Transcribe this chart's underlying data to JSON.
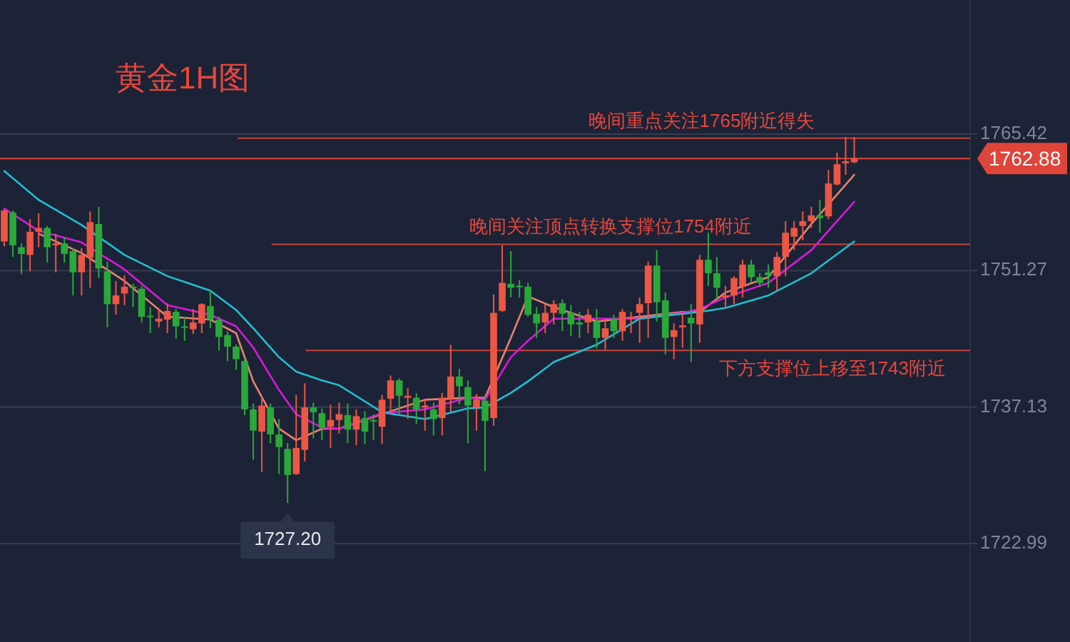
{
  "chart_data": {
    "type": "candlestick",
    "title": "黄金1H图",
    "categories": [
      null,
      null,
      null,
      null,
      null,
      null,
      null,
      null,
      null,
      null,
      null,
      null,
      null,
      null,
      null,
      null,
      null,
      null,
      null,
      null,
      null,
      null,
      null,
      null,
      null,
      null,
      null,
      null,
      null,
      null,
      null,
      null,
      null,
      null,
      null,
      null,
      null,
      null,
      null,
      null,
      null,
      null,
      null,
      null,
      null,
      null,
      null,
      null,
      null,
      null,
      null,
      null,
      null,
      null,
      null,
      null,
      null,
      null,
      null,
      null,
      null,
      null,
      null,
      null,
      null,
      null,
      null,
      null,
      null,
      null,
      null,
      null,
      null,
      null,
      null,
      null,
      null,
      null,
      null,
      null,
      null,
      null,
      null,
      null,
      null,
      null,
      null,
      null,
      null,
      null,
      null,
      null,
      null,
      null,
      null,
      null,
      null,
      null,
      null,
      null,
      null,
      null,
      null,
      null,
      null,
      null,
      null,
      null,
      null,
      null,
      null,
      null,
      null
    ],
    "ohlc": [
      [
        1754.3,
        1757.6,
        1753.8,
        1757.5
      ],
      [
        1757.3,
        1757.5,
        1752.7,
        1753.9
      ],
      [
        1753.7,
        1754.1,
        1750.9,
        1753.0
      ],
      [
        1752.9,
        1756.6,
        1751.2,
        1755.3
      ],
      [
        1755.3,
        1757.2,
        1753.7,
        1755.7
      ],
      [
        1755.7,
        1755.9,
        1752.1,
        1753.7
      ],
      [
        1753.9,
        1755.1,
        1751.1,
        1754.1
      ],
      [
        1754.1,
        1754.7,
        1752.1,
        1753.0
      ],
      [
        1753.3,
        1753.6,
        1748.7,
        1751.1
      ],
      [
        1751.1,
        1753.6,
        1748.7,
        1752.9
      ],
      [
        1752.6,
        1757.4,
        1749.5,
        1756.3
      ],
      [
        1756.1,
        1757.9,
        1750.5,
        1751.5
      ],
      [
        1751.2,
        1752.2,
        1745.4,
        1747.8
      ],
      [
        1747.8,
        1750.2,
        1746.7,
        1748.7
      ],
      [
        1748.9,
        1750.8,
        1747.7,
        1749.6
      ],
      [
        1749.6,
        1749.9,
        1747.5,
        1749.5
      ],
      [
        1749.4,
        1749.7,
        1745.9,
        1746.5
      ],
      [
        1746.6,
        1747.5,
        1744.8,
        1746.5
      ],
      [
        1746.0,
        1747.3,
        1745.4,
        1746.3
      ],
      [
        1746.2,
        1747.9,
        1744.8,
        1747.1
      ],
      [
        1747.0,
        1747.3,
        1744.2,
        1745.5
      ],
      [
        1745.5,
        1746.5,
        1744.0,
        1745.4
      ],
      [
        1745.2,
        1747.3,
        1744.7,
        1745.9
      ],
      [
        1745.8,
        1747.9,
        1744.8,
        1747.8
      ],
      [
        1747.6,
        1749.2,
        1745.3,
        1746.2
      ],
      [
        1746.2,
        1746.5,
        1743.0,
        1744.4
      ],
      [
        1744.6,
        1745.0,
        1741.9,
        1743.4
      ],
      [
        1743.4,
        1743.6,
        1741.0,
        1742.1
      ],
      [
        1741.9,
        1742.2,
        1736.3,
        1736.9
      ],
      [
        1736.9,
        1737.5,
        1731.7,
        1734.7
      ],
      [
        1734.6,
        1738.2,
        1730.4,
        1737.3
      ],
      [
        1737.1,
        1737.5,
        1733.4,
        1734.3
      ],
      [
        1734.3,
        1735.9,
        1730.2,
        1733.0
      ],
      [
        1732.8,
        1733.4,
        1727.2,
        1730.1
      ],
      [
        1730.2,
        1738.4,
        1730.1,
        1732.9
      ],
      [
        1732.7,
        1739.6,
        1731.5,
        1737.1
      ],
      [
        1737.1,
        1737.6,
        1733.9,
        1736.6
      ],
      [
        1736.5,
        1737.0,
        1733.7,
        1735.0
      ],
      [
        1735.1,
        1737.4,
        1732.9,
        1735.8
      ],
      [
        1735.8,
        1737.6,
        1734.4,
        1736.4
      ],
      [
        1736.3,
        1737.5,
        1733.4,
        1734.8
      ],
      [
        1734.8,
        1736.9,
        1733.2,
        1736.2
      ],
      [
        1736.0,
        1736.7,
        1733.3,
        1734.6
      ],
      [
        1735.8,
        1736.4,
        1733.7,
        1735.7
      ],
      [
        1735.1,
        1738.4,
        1733.3,
        1737.9
      ],
      [
        1738.0,
        1740.4,
        1736.8,
        1739.9
      ],
      [
        1739.9,
        1740.1,
        1736.4,
        1738.3
      ],
      [
        1738.1,
        1739.1,
        1735.9,
        1738.3
      ],
      [
        1738.1,
        1738.6,
        1735.4,
        1736.9
      ],
      [
        1737.1,
        1737.9,
        1734.7,
        1737.3
      ],
      [
        1736.9,
        1737.6,
        1734.2,
        1735.9
      ],
      [
        1736.0,
        1738.6,
        1734.2,
        1738.1
      ],
      [
        1738.0,
        1743.6,
        1736.6,
        1740.3
      ],
      [
        1740.3,
        1741.1,
        1737.4,
        1739.3
      ],
      [
        1739.2,
        1739.9,
        1733.4,
        1737.3
      ],
      [
        1737.1,
        1738.5,
        1734.7,
        1737.9
      ],
      [
        1737.8,
        1738.4,
        1730.5,
        1735.7
      ],
      [
        1736.0,
        1748.8,
        1735.2,
        1746.9
      ],
      [
        1747.1,
        1753.9,
        1747.0,
        1750.0
      ],
      [
        1749.9,
        1753.3,
        1748.5,
        1749.5
      ],
      [
        1749.7,
        1750.3,
        1748.5,
        1749.6
      ],
      [
        1749.6,
        1750.0,
        1746.5,
        1746.7
      ],
      [
        1746.8,
        1747.5,
        1744.3,
        1745.8
      ],
      [
        1745.9,
        1747.8,
        1744.8,
        1746.9
      ],
      [
        1746.9,
        1748.2,
        1745.7,
        1747.8
      ],
      [
        1747.9,
        1748.3,
        1745.0,
        1746.8
      ],
      [
        1746.9,
        1747.7,
        1744.5,
        1745.7
      ],
      [
        1745.9,
        1747.0,
        1744.3,
        1745.7
      ],
      [
        1745.9,
        1747.3,
        1744.8,
        1746.7
      ],
      [
        1746.0,
        1747.3,
        1743.2,
        1744.3
      ],
      [
        1744.3,
        1746.3,
        1743.1,
        1745.3
      ],
      [
        1746.3,
        1746.7,
        1744.3,
        1745.0
      ],
      [
        1745.0,
        1747.3,
        1744.0,
        1747.0
      ],
      [
        1746.3,
        1747.0,
        1744.8,
        1746.5
      ],
      [
        1746.9,
        1748.5,
        1743.8,
        1747.8
      ],
      [
        1747.9,
        1752.2,
        1744.3,
        1751.8
      ],
      [
        1751.8,
        1753.4,
        1746.0,
        1748.0
      ],
      [
        1748.2,
        1749.0,
        1742.6,
        1744.3
      ],
      [
        1744.4,
        1745.8,
        1742.1,
        1745.1
      ],
      [
        1745.4,
        1746.8,
        1743.3,
        1745.6
      ],
      [
        1746.4,
        1747.8,
        1741.8,
        1745.8
      ],
      [
        1745.7,
        1752.9,
        1743.8,
        1752.4
      ],
      [
        1752.4,
        1755.2,
        1749.7,
        1751.0
      ],
      [
        1751.0,
        1752.7,
        1748.3,
        1749.5
      ],
      [
        1748.5,
        1749.7,
        1747.3,
        1748.7
      ],
      [
        1748.7,
        1750.7,
        1747.8,
        1750.5
      ],
      [
        1749.6,
        1752.4,
        1748.5,
        1751.9
      ],
      [
        1751.9,
        1752.4,
        1750.0,
        1750.6
      ],
      [
        1750.6,
        1751.0,
        1749.6,
        1750.0
      ],
      [
        1751.1,
        1751.9,
        1749.5,
        1750.8
      ],
      [
        1750.7,
        1753.2,
        1749.2,
        1752.7
      ],
      [
        1752.7,
        1756.4,
        1750.7,
        1755.2
      ],
      [
        1754.8,
        1756.4,
        1753.4,
        1755.7
      ],
      [
        1755.9,
        1757.4,
        1754.4,
        1756.4
      ],
      [
        1756.4,
        1757.9,
        1755.7,
        1757.0
      ],
      [
        1757.0,
        1758.6,
        1755.2,
        1756.7
      ],
      [
        1756.9,
        1761.7,
        1756.6,
        1760.3
      ],
      [
        1760.2,
        1763.5,
        1760.1,
        1762.3
      ],
      [
        1762.4,
        1765.1,
        1761.2,
        1762.6
      ],
      [
        1762.5,
        1765.1,
        1762.4,
        1762.88
      ],
      null,
      null,
      null,
      null,
      null,
      null,
      null,
      null,
      null,
      null,
      null,
      null,
      null
    ],
    "series": [
      {
        "type": "line",
        "color": "#e8836f",
        "values": [
          null,
          null,
          null,
          null,
          1755.1,
          null,
          null,
          null,
          null,
          1753.1,
          null,
          null,
          null,
          null,
          1750.2,
          null,
          null,
          null,
          null,
          1746.5,
          null,
          null,
          null,
          null,
          1746.2,
          null,
          null,
          1744.8,
          null,
          1739.8,
          null,
          null,
          1734.9,
          null,
          1733.7,
          null,
          null,
          1734.9,
          null,
          1734.9,
          null,
          null,
          null,
          null,
          1736.4,
          null,
          null,
          null,
          null,
          1737.9,
          null,
          null,
          null,
          null,
          1738.1,
          null,
          1738.1,
          null,
          null,
          1744.3,
          null,
          1748.6,
          null,
          null,
          1747.5,
          null,
          null,
          null,
          null,
          1746.0,
          null,
          null,
          null,
          null,
          1746.5,
          null,
          null,
          null,
          null,
          1747.0,
          null,
          1747.0,
          null,
          null,
          1749.0,
          null,
          null,
          null,
          null,
          1750.6,
          null,
          null,
          null,
          null,
          1756.1,
          null,
          null,
          null,
          null,
          1761.2,
          null,
          null,
          null,
          null,
          null,
          null,
          null,
          null,
          null,
          null,
          null,
          null,
          null
        ]
      },
      {
        "type": "line",
        "color": "#d91ad9",
        "values": [
          1757.7,
          null,
          null,
          null,
          1755.4,
          null,
          null,
          null,
          null,
          1754.2,
          null,
          null,
          null,
          null,
          1751.4,
          null,
          null,
          null,
          null,
          1747.7,
          null,
          null,
          null,
          null,
          1746.7,
          null,
          null,
          1745.5,
          null,
          1743.3,
          null,
          null,
          1738.9,
          null,
          1736.4,
          null,
          null,
          1735.0,
          null,
          1734.9,
          null,
          null,
          null,
          null,
          1736.5,
          null,
          null,
          null,
          null,
          1736.9,
          null,
          null,
          null,
          null,
          1738.1,
          null,
          1737.9,
          null,
          null,
          1742.3,
          null,
          1744.0,
          null,
          null,
          1746.3,
          null,
          null,
          null,
          null,
          1746.3,
          null,
          null,
          null,
          null,
          1746.3,
          null,
          null,
          null,
          null,
          1746.9,
          null,
          1747.3,
          null,
          null,
          1748.5,
          null,
          null,
          null,
          null,
          1750.0,
          null,
          null,
          null,
          null,
          1753.4,
          null,
          null,
          null,
          null,
          1758.4,
          null,
          null,
          null,
          null,
          null,
          null,
          null,
          null,
          null,
          null,
          null,
          null,
          null
        ]
      },
      {
        "type": "line",
        "color": "#1fbfcf",
        "values": [
          1761.6,
          null,
          null,
          null,
          1758.6,
          null,
          null,
          null,
          null,
          1756.0,
          null,
          null,
          null,
          null,
          1752.9,
          null,
          null,
          null,
          null,
          1750.7,
          null,
          null,
          null,
          null,
          1749.2,
          null,
          null,
          1747.2,
          null,
          1745.3,
          null,
          null,
          1742.3,
          null,
          1740.8,
          null,
          null,
          1739.9,
          null,
          1739.4,
          null,
          null,
          null,
          null,
          1736.6,
          null,
          null,
          null,
          null,
          1735.9,
          null,
          null,
          null,
          null,
          1737.0,
          null,
          1737.1,
          null,
          null,
          1738.6,
          null,
          1739.8,
          null,
          null,
          1741.8,
          null,
          null,
          null,
          null,
          1743.6,
          null,
          null,
          null,
          null,
          1746.3,
          null,
          null,
          null,
          null,
          1746.8,
          null,
          1747.0,
          null,
          null,
          1747.4,
          null,
          null,
          null,
          null,
          1748.7,
          null,
          null,
          null,
          null,
          1751.0,
          null,
          null,
          null,
          null,
          1754.3,
          null,
          null,
          null,
          null,
          null,
          null,
          null,
          null,
          null,
          null,
          null,
          null,
          null
        ]
      }
    ],
    "ylim": [
      1712.8,
      1779.31
    ],
    "yticks": [
      1722.99,
      1737.13,
      1751.27,
      1765.42
    ],
    "grid": "y",
    "tick_labels": "y",
    "ref_lines": [
      {
        "axis": "y",
        "value": 1765,
        "label": "晚间重点关注1765附近得失",
        "color": "#c8453d"
      },
      {
        "axis": "y",
        "value": 1754,
        "label": "晚间关注顶点转换支撑位1754附近",
        "color": "#c8453d"
      },
      {
        "axis": "y",
        "value": 1743,
        "label": "下方支撑位上移至1743附近",
        "color": "#c8453d"
      },
      {
        "axis": "y",
        "value": 1762.88,
        "label": "1762.88",
        "color": "#e0453a"
      }
    ],
    "annotations": [
      {
        "text": "1727.20",
        "y": 1727.2
      }
    ]
  }
}
